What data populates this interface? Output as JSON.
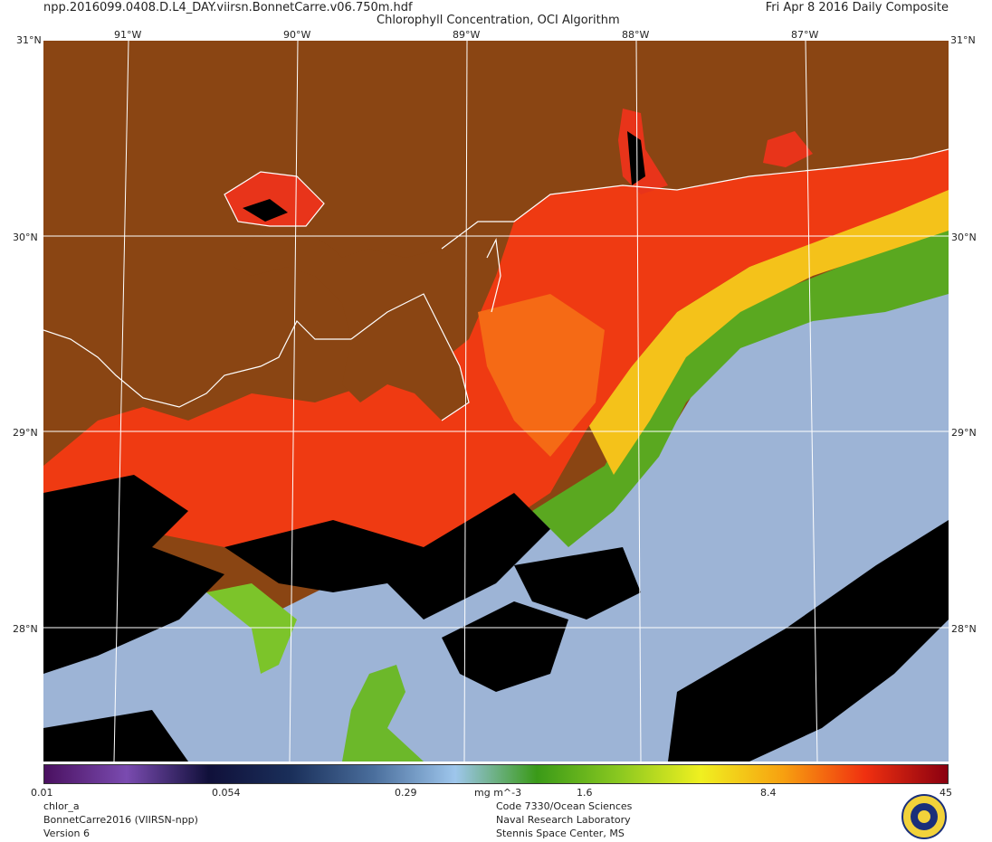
{
  "header": {
    "filename": "npp.2016099.0408.D.L4_DAY.viirsn.BonnetCarre.v06.750m.hdf",
    "title": "Chlorophyll Concentration, OCI Algorithm",
    "date": "Fri Apr  8 2016 Daily Composite"
  },
  "axes": {
    "top_lon_labels": [
      "91°W",
      "90°W",
      "89°W",
      "88°W",
      "87°W"
    ],
    "lat_labels": [
      "31°N",
      "30°N",
      "29°N",
      "28°N"
    ],
    "corner_top_left": "31°N",
    "corner_top_right": "31°N",
    "corner_bottom_left": "",
    "corner_bottom_right": ""
  },
  "colorbar": {
    "ticks": [
      "0.01",
      "0.054",
      "0.29",
      "1.6",
      "8.4",
      "45"
    ],
    "units": "mg m^-3",
    "colors": [
      "#4a1060",
      "#7a4bb0",
      "#10103a",
      "#1a2f5a",
      "#4a6e9c",
      "#9ec6ec",
      "#3a9a18",
      "#8ac820",
      "#f0f020",
      "#f7a010",
      "#f03010",
      "#8a0010"
    ]
  },
  "footer": {
    "left": [
      "chlor_a",
      "BonnetCarre2016 (VIIRSN-npp)",
      "Version 6"
    ],
    "center": [
      "Code 7330/Ocean Sciences",
      "Naval Research Laboratory",
      "Stennis Space Center, MS"
    ]
  },
  "map_colors": {
    "land": "#8a4513",
    "no_data": "#000000",
    "low_chl": "#9db4d6",
    "mid_chl": "#5aa820",
    "high_chl": "#ef3a12",
    "coastline": "#ffffff",
    "graticule": "#ffffff"
  }
}
